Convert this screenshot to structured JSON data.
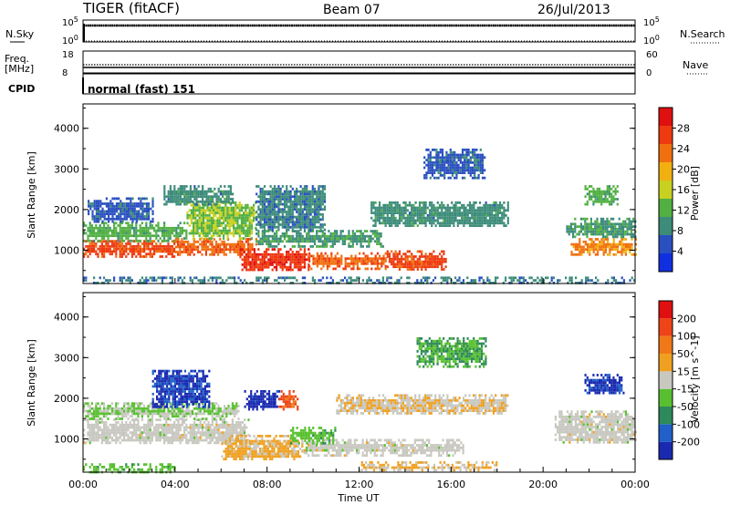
{
  "header": {
    "radar": "TIGER (fitACF)",
    "beam": "Beam 07",
    "date": "26/Jul/2013"
  },
  "strip1": {
    "left_label": "N.Sky",
    "right_label": "N.Search",
    "left_ticks": [
      "10^5",
      "10^0"
    ],
    "right_ticks": [
      "10^5",
      "10^0"
    ]
  },
  "strip2": {
    "left_label_1": "Freq.",
    "left_label_2": "[MHz]",
    "right_label": "Nave",
    "left_ticks": [
      "18",
      "8"
    ],
    "right_ticks": [
      "60",
      "0"
    ]
  },
  "strip3": {
    "left_label": "CPID",
    "text": "normal (fast) 151"
  },
  "colors": {
    "power": [
      "#1030e0",
      "#2a4fc0",
      "#3d8c7a",
      "#52b043",
      "#c8d020",
      "#f2b010",
      "#f07010",
      "#ee3a10",
      "#e01010"
    ],
    "velocity": [
      "#1a2ab0",
      "#2060c8",
      "#2e8a5a",
      "#58c030",
      "#c8c8c0",
      "#f0a020",
      "#f07818",
      "#ee4418",
      "#e01010"
    ]
  },
  "chart_data": [
    {
      "type": "heatmap",
      "panel": "power",
      "ylabel": "Slant Range [km]",
      "ylim": [
        180,
        4600
      ],
      "y_ticks": [
        "4000",
        "3000",
        "2000",
        "1000"
      ],
      "colorbar_label": "Power [dB]",
      "colorbar_ticks": [
        "28",
        "24",
        "20",
        "16",
        "12",
        "8",
        "4"
      ],
      "colorbar_range": [
        0,
        32
      ],
      "regions": [
        {
          "t0": 0.0,
          "t1": 4.0,
          "r0": 850,
          "r1": 1250,
          "value": 26
        },
        {
          "t0": 0.0,
          "t1": 4.5,
          "r0": 1250,
          "r1": 1700,
          "value": 12
        },
        {
          "t0": 0.2,
          "t1": 3.0,
          "r0": 1700,
          "r1": 2300,
          "value": 6
        },
        {
          "t0": 4.0,
          "t1": 7.5,
          "r0": 900,
          "r1": 1300,
          "value": 24
        },
        {
          "t0": 4.5,
          "t1": 7.5,
          "r0": 1300,
          "r1": 2200,
          "value": 14
        },
        {
          "t0": 6.8,
          "t1": 9.8,
          "r0": 500,
          "r1": 1050,
          "value": 28
        },
        {
          "t0": 9.8,
          "t1": 13.2,
          "r0": 550,
          "r1": 950,
          "value": 24
        },
        {
          "t0": 13.2,
          "t1": 15.8,
          "r0": 500,
          "r1": 1000,
          "value": 26
        },
        {
          "t0": 7.5,
          "t1": 13.0,
          "r0": 1100,
          "r1": 1500,
          "value": 10
        },
        {
          "t0": 7.5,
          "t1": 10.5,
          "r0": 1500,
          "r1": 2600,
          "value": 8
        },
        {
          "t0": 3.5,
          "t1": 6.5,
          "r0": 2100,
          "r1": 2600,
          "value": 9
        },
        {
          "t0": 12.5,
          "t1": 18.5,
          "r0": 1600,
          "r1": 2200,
          "value": 9
        },
        {
          "t0": 14.8,
          "t1": 17.5,
          "r0": 2800,
          "r1": 3500,
          "value": 6
        },
        {
          "t0": 0.0,
          "t1": 24.0,
          "r0": 200,
          "r1": 350,
          "value": 8
        },
        {
          "t0": 21.2,
          "t1": 24.0,
          "r0": 900,
          "r1": 1300,
          "value": 22
        },
        {
          "t0": 21.0,
          "t1": 24.0,
          "r0": 1300,
          "r1": 1800,
          "value": 10
        },
        {
          "t0": 21.8,
          "t1": 23.2,
          "r0": 2100,
          "r1": 2600,
          "value": 12
        }
      ]
    },
    {
      "type": "heatmap",
      "panel": "velocity",
      "xlabel": "Time UT",
      "x_ticks": [
        "00:00",
        "04:00",
        "08:00",
        "12:00",
        "16:00",
        "20:00",
        "00:00"
      ],
      "xlim": [
        0,
        24
      ],
      "ylabel": "Slant Range [km]",
      "ylim": [
        180,
        4600
      ],
      "y_ticks": [
        "4000",
        "3000",
        "2000",
        "1000"
      ],
      "colorbar_label": "Velocity [m s^-1]",
      "colorbar_ticks": [
        "200",
        "100",
        "50",
        "15",
        "-15",
        "-50",
        "-100",
        "-200"
      ],
      "colorbar_range": [
        -250,
        250
      ],
      "regions": [
        {
          "t0": 0.0,
          "t1": 7.2,
          "r0": 900,
          "r1": 1500,
          "value": 0
        },
        {
          "t0": 0.0,
          "t1": 6.8,
          "r0": 1500,
          "r1": 1900,
          "value": -30
        },
        {
          "t0": 3.0,
          "t1": 5.5,
          "r0": 1800,
          "r1": 2700,
          "value": -200
        },
        {
          "t0": 7.0,
          "t1": 8.5,
          "r0": 1700,
          "r1": 2200,
          "value": -220
        },
        {
          "t0": 8.5,
          "t1": 9.3,
          "r0": 1700,
          "r1": 2200,
          "value": 150
        },
        {
          "t0": 6.0,
          "t1": 9.5,
          "r0": 500,
          "r1": 1100,
          "value": 40
        },
        {
          "t0": 9.5,
          "t1": 16.5,
          "r0": 600,
          "r1": 1000,
          "value": 0
        },
        {
          "t0": 9.0,
          "t1": 11.0,
          "r0": 900,
          "r1": 1300,
          "value": -60
        },
        {
          "t0": 11.0,
          "t1": 18.5,
          "r0": 1600,
          "r1": 2100,
          "value": 20
        },
        {
          "t0": 14.5,
          "t1": 17.5,
          "r0": 2800,
          "r1": 3500,
          "value": -80
        },
        {
          "t0": 12.0,
          "t1": 18.0,
          "r0": 200,
          "r1": 450,
          "value": 30
        },
        {
          "t0": 20.5,
          "t1": 24.0,
          "r0": 900,
          "r1": 1700,
          "value": 0
        },
        {
          "t0": 21.8,
          "t1": 23.5,
          "r0": 2100,
          "r1": 2600,
          "value": -210
        },
        {
          "t0": 0.0,
          "t1": 4.0,
          "r0": 200,
          "r1": 400,
          "value": -60
        }
      ]
    }
  ]
}
